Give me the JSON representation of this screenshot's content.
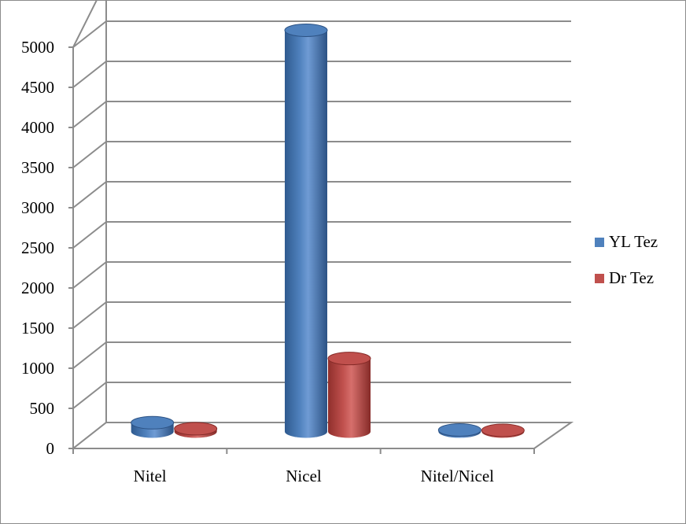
{
  "chart_data": {
    "type": "bar",
    "style": "3d-cylinder",
    "categories": [
      "Nitel",
      "Nicel",
      "Nitel/Nicel"
    ],
    "series": [
      {
        "name": "YL Tez",
        "values": [
          110,
          5000,
          20
        ],
        "color": "#4f81bd"
      },
      {
        "name": "Dr Tez",
        "values": [
          35,
          910,
          15
        ],
        "color": "#c0504d"
      }
    ],
    "ylim": [
      0,
      5000
    ],
    "y_ticks": [
      0,
      500,
      1000,
      1500,
      2000,
      2500,
      3000,
      3500,
      4000,
      4500,
      5000
    ],
    "title": "",
    "xlabel": "",
    "ylabel": "",
    "grid": true,
    "legend_position": "right"
  }
}
